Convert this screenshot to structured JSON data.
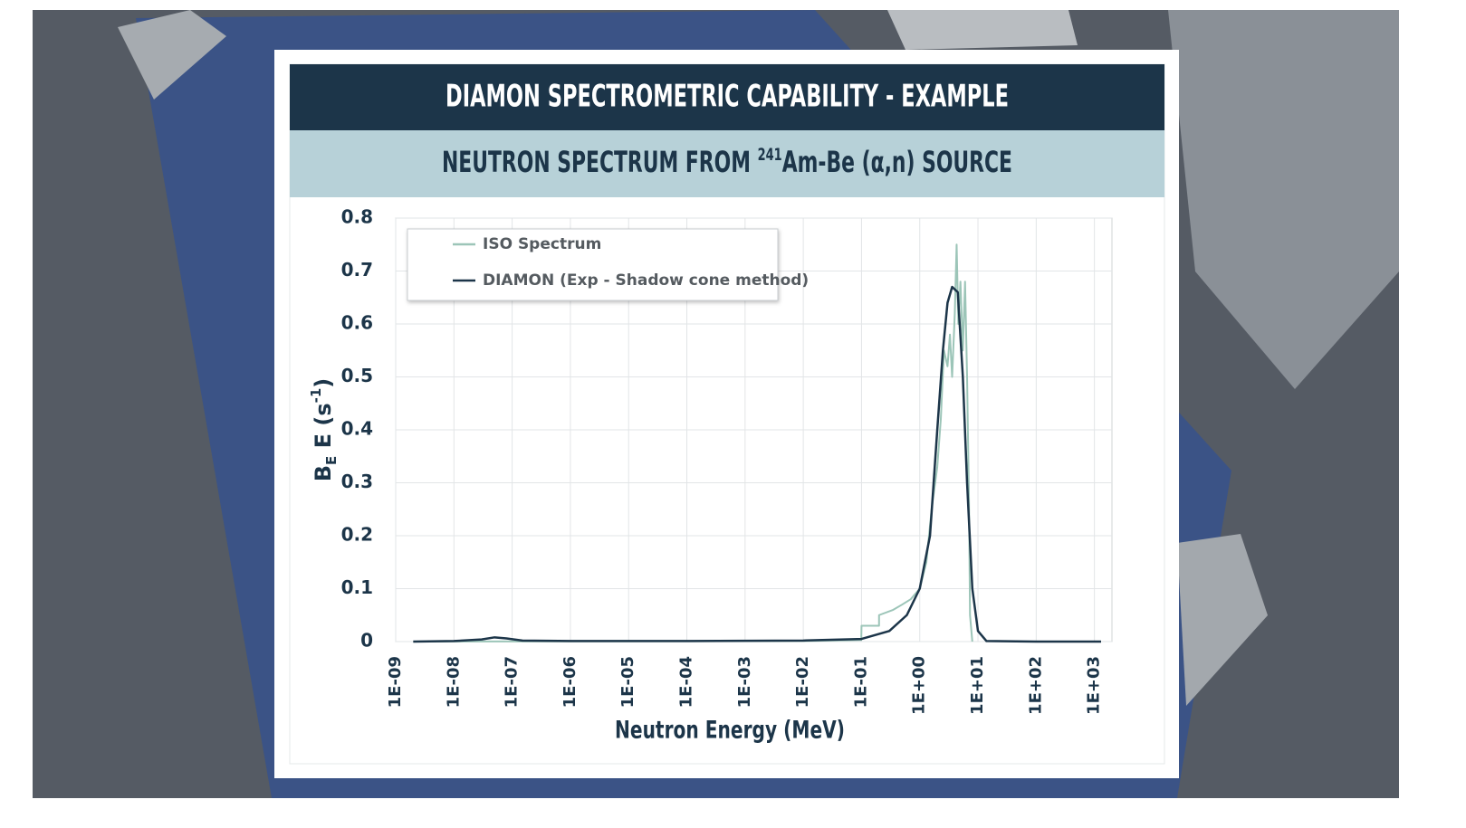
{
  "chart_data": {
    "type": "line",
    "title": "DIAMON SPECTROMETRIC CAPABILITY - EXAMPLE",
    "subtitle": {
      "before": "NEUTRON SPECTRUM FROM ",
      "superscript": "241",
      "after": "Am-Be (α,n) SOURCE"
    },
    "ylabel": {
      "main": "B",
      "subscript": "E",
      "middle": " E (s",
      "superscript": "-1",
      "end": ")"
    },
    "xlabel": "Neutron Energy (MeV)",
    "xscale": "log",
    "grid": true,
    "legend": "upper left",
    "xlim": [
      1e-09,
      2000
    ],
    "ylim": [
      0,
      0.8
    ],
    "xticks": [
      {
        "value": 1e-09,
        "label": "1E-09"
      },
      {
        "value": 1e-08,
        "label": "1E-08"
      },
      {
        "value": 1e-07,
        "label": "1E-07"
      },
      {
        "value": 1e-06,
        "label": "1E-06"
      },
      {
        "value": 1e-05,
        "label": "1E-05"
      },
      {
        "value": 0.0001,
        "label": "1E-04"
      },
      {
        "value": 0.001,
        "label": "1E-03"
      },
      {
        "value": 0.01,
        "label": "1E-02"
      },
      {
        "value": 0.1,
        "label": "1E-01"
      },
      {
        "value": 1,
        "label": "1E+00"
      },
      {
        "value": 10,
        "label": "1E+01"
      },
      {
        "value": 100,
        "label": "1E+02"
      },
      {
        "value": 1000,
        "label": "1E+03"
      }
    ],
    "yticks": [
      0,
      0.1,
      0.2,
      0.3,
      0.4,
      0.5,
      0.6,
      0.7,
      0.8
    ],
    "series": [
      {
        "name": "ISO Spectrum",
        "color": "#9cc5b8",
        "x": [
          2e-09,
          0.01,
          0.099,
          0.1,
          0.2,
          0.2,
          0.35,
          0.5,
          0.7,
          1,
          1.3,
          1.6,
          2,
          2.3,
          2.6,
          3,
          3.3,
          3.6,
          4,
          4.3,
          4.6,
          5,
          5.5,
          6,
          6.5,
          7,
          7.3,
          8
        ],
        "values": [
          0,
          0.001,
          0.003,
          0.03,
          0.03,
          0.05,
          0.06,
          0.07,
          0.08,
          0.1,
          0.15,
          0.25,
          0.33,
          0.42,
          0.55,
          0.52,
          0.58,
          0.5,
          0.62,
          0.75,
          0.6,
          0.68,
          0.55,
          0.68,
          0.5,
          0.27,
          0.05,
          0
        ]
      },
      {
        "name": "DIAMON (Exp - Shadow cone method)",
        "color": "#1c3549",
        "x": [
          2e-09,
          1e-08,
          3e-08,
          5e-08,
          8e-08,
          1.5e-07,
          1e-06,
          0.0001,
          0.01,
          0.1,
          0.3,
          0.6,
          1,
          1.5,
          2,
          2.5,
          3,
          3.6,
          4.5,
          5.5,
          6.5,
          8,
          10,
          14,
          100,
          1300
        ],
        "values": [
          0,
          0.001,
          0.004,
          0.008,
          0.006,
          0.002,
          0.001,
          0.001,
          0.002,
          0.005,
          0.02,
          0.05,
          0.1,
          0.2,
          0.4,
          0.55,
          0.64,
          0.67,
          0.66,
          0.5,
          0.3,
          0.1,
          0.02,
          0.001,
          0,
          0
        ]
      }
    ]
  }
}
